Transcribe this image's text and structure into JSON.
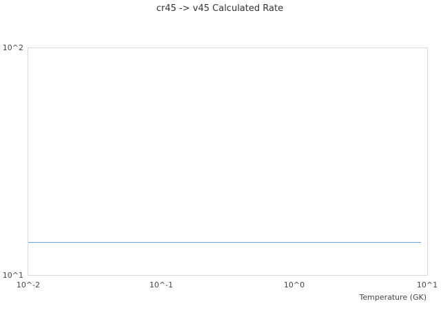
{
  "chart_data": {
    "type": "line",
    "title": "cr45 -> v45 Calculated Rate",
    "xlabel": "Temperature (GK)",
    "ylabel": "",
    "xscale": "log",
    "yscale": "log",
    "xlim": [
      0.01,
      10
    ],
    "ylim": [
      10,
      100
    ],
    "xticks": [
      "10^-2",
      "10^-1",
      "10^0",
      "10^1"
    ],
    "yticks": [
      "10^1",
      "10^2"
    ],
    "grid": false,
    "series": [
      {
        "color": "#5b9bd5",
        "x": [
          0.01,
          9
        ],
        "y": [
          13.9,
          13.9
        ]
      }
    ]
  }
}
